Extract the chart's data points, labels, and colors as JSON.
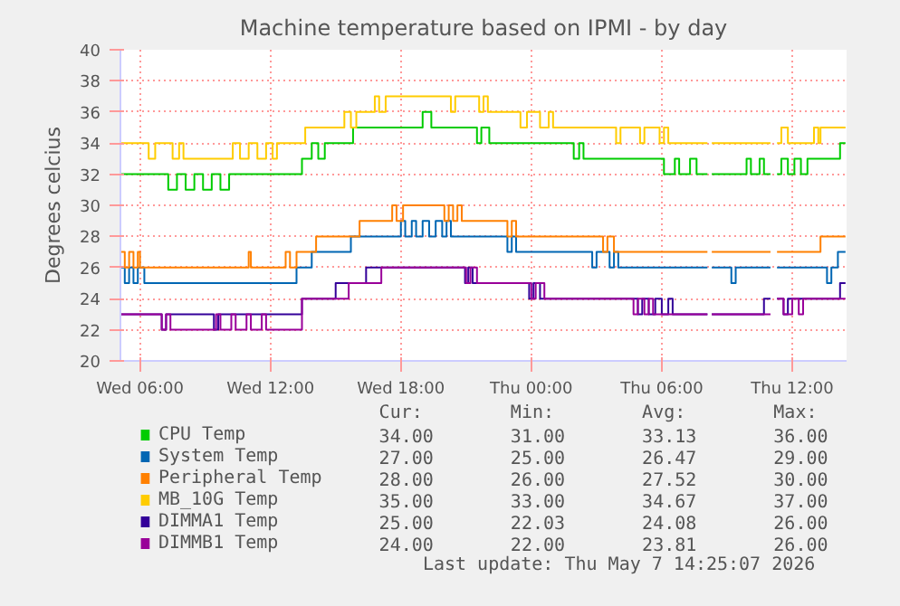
{
  "chart_data": {
    "type": "step",
    "title": "Machine temperature based on IPMI - by day",
    "ylabel": "Degrees celcius",
    "xlim": [
      "2026-05-06T05:06",
      "2026-05-07T14:30"
    ],
    "xticks": [
      {
        "value": "2026-05-06T06:00",
        "label": "Wed 06:00"
      },
      {
        "value": "2026-05-06T12:00",
        "label": "Wed 12:00"
      },
      {
        "value": "2026-05-06T18:00",
        "label": "Wed 18:00"
      },
      {
        "value": "2026-05-07T00:00",
        "label": "Thu 00:00"
      },
      {
        "value": "2026-05-07T06:00",
        "label": "Thu 06:00"
      },
      {
        "value": "2026-05-07T12:00",
        "label": "Thu 12:00"
      }
    ],
    "ylim": [
      20,
      40
    ],
    "yticks": [
      20,
      22,
      24,
      26,
      28,
      30,
      32,
      34,
      36,
      38,
      40
    ],
    "grid": true,
    "legend": "bottom",
    "series": [
      {
        "name": "CPU Temp",
        "color": "#00cc00",
        "x": [
          "2026-05-06T05:07",
          "2026-05-06T07:18",
          "2026-05-06T07:42",
          "2026-05-06T08:06",
          "2026-05-06T08:30",
          "2026-05-06T08:54",
          "2026-05-06T09:18",
          "2026-05-06T09:42",
          "2026-05-06T10:06",
          "2026-05-06T13:27",
          "2026-05-06T13:54",
          "2026-05-06T14:12",
          "2026-05-06T14:30",
          "2026-05-06T15:48",
          "2026-05-06T19:00",
          "2026-05-06T19:24",
          "2026-05-06T21:30",
          "2026-05-06T21:42",
          "2026-05-06T22:04",
          "2026-05-07T01:57",
          "2026-05-07T02:12",
          "2026-05-07T02:24",
          "2026-05-07T06:06",
          "2026-05-07T06:36",
          "2026-05-07T06:48",
          "2026-05-07T07:18",
          "2026-05-07T07:36",
          "2026-05-07T08:06",
          "2026-05-07T08:18",
          "2026-05-07T09:54",
          "2026-05-07T10:06",
          "2026-05-07T10:30",
          "2026-05-07T10:42",
          "2026-05-07T11:00",
          "2026-05-07T11:18",
          "2026-05-07T11:30",
          "2026-05-07T11:48",
          "2026-05-07T12:06",
          "2026-05-07T12:24",
          "2026-05-07T12:42",
          "2026-05-07T14:12",
          "2026-05-07T14:27"
        ],
        "values": [
          32,
          31,
          32,
          31,
          32,
          31,
          32,
          31,
          32,
          33,
          34,
          33,
          34,
          35,
          36,
          35,
          34,
          35,
          34,
          33,
          34,
          33,
          32,
          33,
          32,
          33,
          32,
          null,
          32,
          33,
          32,
          33,
          32,
          null,
          32,
          33,
          32,
          33,
          32,
          33,
          34,
          34
        ]
      },
      {
        "name": "System Temp",
        "color": "#0066b3",
        "x": [
          "2026-05-06T05:07",
          "2026-05-06T05:18",
          "2026-05-06T05:30",
          "2026-05-06T05:42",
          "2026-05-06T05:54",
          "2026-05-06T06:12",
          "2026-05-06T13:12",
          "2026-05-06T13:54",
          "2026-05-06T15:42",
          "2026-05-06T18:00",
          "2026-05-06T18:12",
          "2026-05-06T18:30",
          "2026-05-06T18:42",
          "2026-05-06T19:00",
          "2026-05-06T19:18",
          "2026-05-06T19:36",
          "2026-05-06T19:54",
          "2026-05-06T20:06",
          "2026-05-06T20:18",
          "2026-05-06T22:54",
          "2026-05-06T23:06",
          "2026-05-06T23:18",
          "2026-05-07T02:48",
          "2026-05-07T03:00",
          "2026-05-07T03:36",
          "2026-05-07T03:48",
          "2026-05-07T04:00",
          "2026-05-07T08:06",
          "2026-05-07T08:18",
          "2026-05-07T09:12",
          "2026-05-07T09:24",
          "2026-05-07T11:00",
          "2026-05-07T11:18",
          "2026-05-07T13:36",
          "2026-05-07T13:48",
          "2026-05-07T14:06",
          "2026-05-07T14:27"
        ],
        "values": [
          26,
          25,
          26,
          25,
          26,
          25,
          26,
          27,
          28,
          29,
          28,
          29,
          28,
          29,
          28,
          29,
          28,
          29,
          28,
          27,
          28,
          27,
          26,
          27,
          26,
          27,
          26,
          null,
          26,
          25,
          26,
          null,
          26,
          25,
          26,
          27,
          27
        ]
      },
      {
        "name": "Peripheral Temp",
        "color": "#ff8000",
        "x": [
          "2026-05-06T05:07",
          "2026-05-06T05:18",
          "2026-05-06T05:30",
          "2026-05-06T05:42",
          "2026-05-06T05:54",
          "2026-05-06T06:00",
          "2026-05-06T11:00",
          "2026-05-06T11:06",
          "2026-05-06T12:42",
          "2026-05-06T12:54",
          "2026-05-06T13:12",
          "2026-05-06T14:06",
          "2026-05-06T16:06",
          "2026-05-06T17:36",
          "2026-05-06T17:48",
          "2026-05-06T18:06",
          "2026-05-06T20:00",
          "2026-05-06T20:12",
          "2026-05-06T20:24",
          "2026-05-06T20:36",
          "2026-05-06T20:48",
          "2026-05-06T22:54",
          "2026-05-06T23:06",
          "2026-05-06T23:18",
          "2026-05-07T03:18",
          "2026-05-07T03:30",
          "2026-05-07T03:48",
          "2026-05-07T08:06",
          "2026-05-07T08:18",
          "2026-05-07T11:00",
          "2026-05-07T11:18",
          "2026-05-07T13:18",
          "2026-05-07T14:27"
        ],
        "values": [
          27,
          26,
          27,
          26,
          27,
          26,
          27,
          26,
          27,
          26,
          27,
          28,
          29,
          30,
          29,
          30,
          29,
          30,
          29,
          30,
          29,
          28,
          29,
          28,
          27,
          28,
          27,
          null,
          27,
          null,
          27,
          28,
          28
        ]
      },
      {
        "name": "MB_10G Temp",
        "color": "#ffcc00",
        "x": [
          "2026-05-06T05:07",
          "2026-05-06T06:24",
          "2026-05-06T06:42",
          "2026-05-06T07:30",
          "2026-05-06T07:48",
          "2026-05-06T08:00",
          "2026-05-06T10:16",
          "2026-05-06T10:36",
          "2026-05-06T11:00",
          "2026-05-06T11:24",
          "2026-05-06T11:48",
          "2026-05-06T12:06",
          "2026-05-06T12:18",
          "2026-05-06T13:36",
          "2026-05-06T15:24",
          "2026-05-06T15:42",
          "2026-05-06T15:57",
          "2026-05-06T16:48",
          "2026-05-06T17:00",
          "2026-05-06T17:18",
          "2026-05-06T20:18",
          "2026-05-06T20:30",
          "2026-05-06T21:36",
          "2026-05-06T21:48",
          "2026-05-06T22:00",
          "2026-05-06T23:30",
          "2026-05-06T23:48",
          "2026-05-07T00:24",
          "2026-05-07T00:48",
          "2026-05-07T01:00",
          "2026-05-07T03:54",
          "2026-05-07T04:06",
          "2026-05-07T05:00",
          "2026-05-07T05:12",
          "2026-05-07T05:54",
          "2026-05-07T06:06",
          "2026-05-07T06:18",
          "2026-05-07T08:06",
          "2026-05-07T08:18",
          "2026-05-07T11:00",
          "2026-05-07T11:18",
          "2026-05-07T11:30",
          "2026-05-07T11:48",
          "2026-05-07T13:00",
          "2026-05-07T13:12",
          "2026-05-07T13:18",
          "2026-05-07T14:27"
        ],
        "values": [
          34,
          33,
          34,
          33,
          34,
          33,
          34,
          33,
          34,
          33,
          34,
          33,
          34,
          35,
          36,
          35,
          36,
          37,
          36,
          37,
          36,
          37,
          36,
          37,
          36,
          35,
          36,
          35,
          36,
          35,
          34,
          35,
          34,
          35,
          34,
          35,
          34,
          null,
          34,
          null,
          34,
          35,
          34,
          35,
          34,
          35,
          35
        ]
      },
      {
        "name": "DIMMA1 Temp",
        "color": "#330099",
        "x": [
          "2026-05-06T05:07",
          "2026-05-06T07:00",
          "2026-05-06T07:12",
          "2026-05-06T09:24",
          "2026-05-06T09:36",
          "2026-05-06T13:27",
          "2026-05-06T15:00",
          "2026-05-06T16:24",
          "2026-05-06T20:57",
          "2026-05-06T21:06",
          "2026-05-06T21:18",
          "2026-05-06T23:54",
          "2026-05-07T00:06",
          "2026-05-07T00:24",
          "2026-05-07T04:54",
          "2026-05-07T05:06",
          "2026-05-07T05:24",
          "2026-05-07T05:42",
          "2026-05-07T06:00",
          "2026-05-07T06:18",
          "2026-05-07T06:30",
          "2026-05-07T08:06",
          "2026-05-07T08:18",
          "2026-05-07T10:42",
          "2026-05-07T11:00",
          "2026-05-07T11:18",
          "2026-05-07T11:36",
          "2026-05-07T11:48",
          "2026-05-07T14:12",
          "2026-05-07T14:27"
        ],
        "values": [
          23,
          22,
          23,
          22,
          23,
          24,
          25,
          26,
          25,
          26,
          25,
          24,
          25,
          24,
          23,
          24,
          23,
          24,
          23,
          24,
          23,
          null,
          23,
          24,
          null,
          24,
          23,
          24,
          25,
          25
        ]
      },
      {
        "name": "DIMMB1 Temp",
        "color": "#990099",
        "x": [
          "2026-05-06T05:07",
          "2026-05-06T07:00",
          "2026-05-06T07:12",
          "2026-05-06T07:24",
          "2026-05-06T09:30",
          "2026-05-06T09:42",
          "2026-05-06T10:12",
          "2026-05-06T10:24",
          "2026-05-06T10:54",
          "2026-05-06T11:06",
          "2026-05-06T11:36",
          "2026-05-06T11:48",
          "2026-05-06T13:27",
          "2026-05-06T15:36",
          "2026-05-06T17:06",
          "2026-05-06T21:00",
          "2026-05-06T21:12",
          "2026-05-06T21:30",
          "2026-05-07T00:00",
          "2026-05-07T00:12",
          "2026-05-07T00:36",
          "2026-05-07T04:42",
          "2026-05-07T04:54",
          "2026-05-07T05:12",
          "2026-05-07T05:24",
          "2026-05-07T05:36",
          "2026-05-07T08:06",
          "2026-05-07T08:18",
          "2026-05-07T11:00",
          "2026-05-07T11:18",
          "2026-05-07T11:36",
          "2026-05-07T12:00",
          "2026-05-07T12:18",
          "2026-05-07T12:30",
          "2026-05-07T14:27"
        ],
        "values": [
          23,
          22,
          23,
          22,
          23,
          22,
          23,
          22,
          23,
          22,
          23,
          22,
          24,
          25,
          26,
          25,
          26,
          25,
          24,
          25,
          24,
          23,
          24,
          23,
          24,
          23,
          null,
          23,
          null,
          24,
          23,
          24,
          23,
          24,
          24
        ]
      }
    ],
    "annotations": [
      "Cur:",
      "Min:",
      "Avg:",
      "Max:",
      "34.00",
      "31.00",
      "33.13",
      "36.00",
      "27.00",
      "25.00",
      "26.47",
      "29.00",
      "28.00",
      "26.00",
      "27.52",
      "30.00",
      "35.00",
      "33.00",
      "34.67",
      "37.00",
      "25.00",
      "22.03",
      "24.08",
      "26.00",
      "24.00",
      "22.00",
      "23.81",
      "26.00",
      "Last update: Thu May  7 14:25:07 2026"
    ]
  }
}
